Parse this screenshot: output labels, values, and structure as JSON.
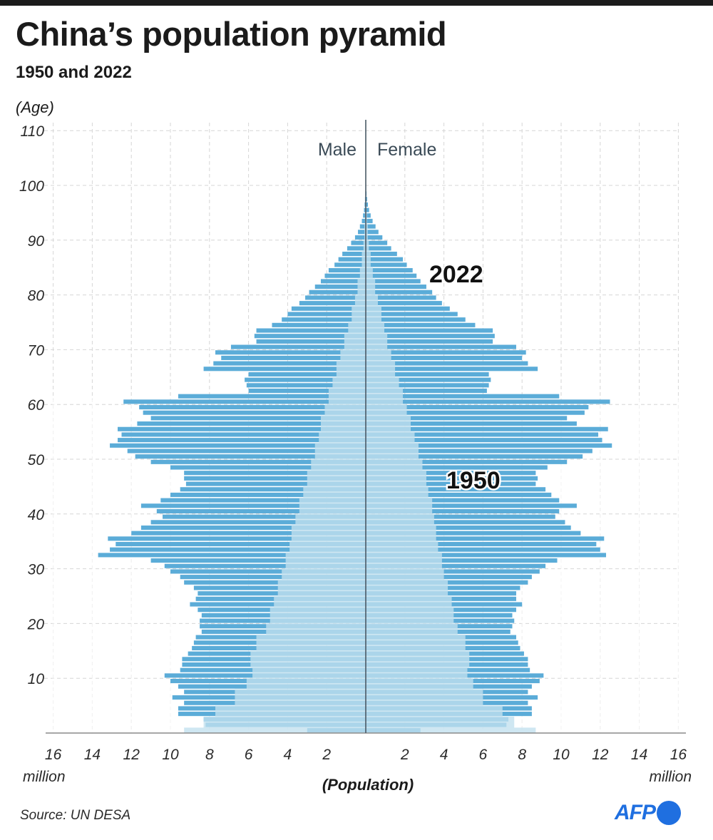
{
  "header": {
    "title": "China’s population pyramid",
    "subtitle": "1950 and 2022"
  },
  "footer": {
    "source": "Source: UN DESA",
    "logo_text": "AFP"
  },
  "colors": {
    "bar_2022": "#5bacd8",
    "area_1950": "#c2e0ee",
    "axis": "#4a5a66",
    "grid": "#d6d6d6",
    "logo": "#1f6fe0"
  },
  "chart_data": {
    "type": "bar",
    "title": "China’s population pyramid",
    "subtitle": "1950 and 2022",
    "orientation": "horizontal-mirrored",
    "ylabel": "(Age)",
    "xlabel": "(Population)",
    "x_unit_left": "million",
    "x_unit_right": "million",
    "xlim": [
      -16,
      16
    ],
    "ylim": [
      0,
      110
    ],
    "x_ticks": [
      -16,
      -14,
      -12,
      -10,
      -8,
      -6,
      -4,
      -2,
      2,
      4,
      6,
      8,
      10,
      12,
      14,
      16
    ],
    "x_tick_labels": [
      "16",
      "14",
      "12",
      "10",
      "8",
      "6",
      "4",
      "2",
      "2",
      "4",
      "6",
      "8",
      "10",
      "12",
      "14",
      "16"
    ],
    "y_ticks": [
      10,
      20,
      30,
      40,
      50,
      60,
      70,
      80,
      90,
      100,
      110
    ],
    "y_tick_labels": [
      "10",
      "20",
      "30",
      "40",
      "50",
      "60",
      "70",
      "80",
      "90",
      "100",
      "110"
    ],
    "side_labels": {
      "left": "Male",
      "right": "Female"
    },
    "series_labels": {
      "2022": "2022",
      "1950": "1950"
    },
    "series": [
      {
        "name": "2022",
        "ages": [
          0,
          1,
          2,
          3,
          4,
          5,
          6,
          7,
          8,
          9,
          10,
          11,
          12,
          13,
          14,
          15,
          16,
          17,
          18,
          19,
          20,
          21,
          22,
          23,
          24,
          25,
          26,
          27,
          28,
          29,
          30,
          31,
          32,
          33,
          34,
          35,
          36,
          37,
          38,
          39,
          40,
          41,
          42,
          43,
          44,
          45,
          46,
          47,
          48,
          49,
          50,
          51,
          52,
          53,
          54,
          55,
          56,
          57,
          58,
          59,
          60,
          61,
          62,
          63,
          64,
          65,
          66,
          67,
          68,
          69,
          70,
          71,
          72,
          73,
          74,
          75,
          76,
          77,
          78,
          79,
          80,
          81,
          82,
          83,
          84,
          85,
          86,
          87,
          88,
          89,
          90,
          91,
          92,
          93,
          94,
          95,
          96,
          97,
          98,
          99,
          100
        ],
        "male": [
          3.0,
          8.2,
          8.3,
          9.6,
          9.6,
          9.3,
          9.9,
          9.3,
          9.6,
          10.0,
          10.3,
          9.5,
          9.4,
          9.4,
          9.1,
          8.9,
          8.8,
          8.7,
          8.4,
          8.5,
          8.5,
          8.4,
          8.6,
          9.0,
          8.7,
          8.6,
          8.8,
          9.3,
          9.5,
          10.0,
          10.3,
          11.0,
          13.7,
          13.1,
          12.8,
          13.2,
          12.0,
          11.5,
          11.0,
          10.4,
          10.7,
          11.5,
          10.5,
          10.0,
          9.5,
          9.2,
          9.3,
          9.3,
          10.0,
          11.0,
          11.8,
          12.2,
          13.1,
          12.7,
          12.5,
          12.7,
          11.7,
          11.0,
          11.4,
          11.6,
          12.4,
          9.6,
          6.0,
          6.1,
          6.2,
          6.0,
          8.3,
          7.8,
          7.4,
          7.7,
          6.9,
          5.6,
          5.7,
          5.6,
          4.8,
          4.3,
          4.0,
          3.8,
          3.4,
          3.1,
          2.9,
          2.6,
          2.3,
          2.1,
          1.9,
          1.6,
          1.4,
          1.2,
          0.95,
          0.75,
          0.55,
          0.4,
          0.3,
          0.2,
          0.14,
          0.09,
          0.06,
          0.04,
          0.02,
          0.01,
          0.005
        ],
        "female": [
          2.8,
          7.2,
          7.3,
          8.5,
          8.5,
          8.3,
          8.8,
          8.3,
          8.5,
          8.9,
          9.1,
          8.4,
          8.3,
          8.3,
          8.1,
          7.9,
          7.8,
          7.7,
          7.4,
          7.5,
          7.6,
          7.5,
          7.7,
          8.0,
          7.7,
          7.7,
          7.9,
          8.3,
          8.5,
          8.9,
          9.2,
          9.8,
          12.3,
          12.0,
          11.8,
          12.2,
          11.0,
          10.5,
          10.2,
          9.7,
          9.9,
          10.8,
          9.9,
          9.5,
          9.2,
          8.7,
          8.8,
          8.7,
          9.3,
          10.3,
          11.1,
          11.6,
          12.6,
          12.1,
          11.9,
          12.4,
          10.8,
          10.3,
          11.2,
          11.4,
          12.5,
          9.9,
          6.2,
          6.3,
          6.4,
          6.3,
          8.8,
          8.3,
          8.0,
          8.2,
          7.7,
          6.5,
          6.6,
          6.5,
          5.6,
          5.1,
          4.7,
          4.3,
          3.9,
          3.6,
          3.4,
          3.1,
          2.8,
          2.6,
          2.4,
          2.1,
          1.9,
          1.6,
          1.3,
          1.1,
          0.85,
          0.65,
          0.5,
          0.35,
          0.25,
          0.17,
          0.11,
          0.07,
          0.04,
          0.02,
          0.01
        ]
      },
      {
        "name": "1950",
        "ages": [
          0,
          1,
          3,
          5,
          8,
          10,
          12,
          15,
          18,
          20,
          23,
          25,
          28,
          30,
          33,
          35,
          38,
          40,
          43,
          45,
          48,
          50,
          53,
          55,
          58,
          60,
          63,
          65,
          68,
          70,
          73,
          75,
          78,
          80,
          83,
          85,
          88,
          90,
          93,
          95,
          98,
          100
        ],
        "male": [
          9.3,
          8.3,
          7.7,
          6.7,
          6.1,
          5.8,
          5.9,
          5.6,
          5.1,
          4.9,
          4.7,
          4.5,
          4.3,
          4.1,
          3.9,
          3.8,
          3.6,
          3.4,
          3.2,
          3.0,
          2.8,
          2.6,
          2.4,
          2.3,
          2.1,
          1.9,
          1.7,
          1.5,
          1.3,
          1.1,
          0.9,
          0.72,
          0.55,
          0.42,
          0.3,
          0.2,
          0.12,
          0.07,
          0.04,
          0.02,
          0.01,
          0.005
        ],
        "female": [
          8.7,
          7.6,
          7.0,
          6.0,
          5.5,
          5.2,
          5.3,
          5.1,
          4.7,
          4.5,
          4.4,
          4.2,
          4.0,
          3.9,
          3.7,
          3.6,
          3.5,
          3.4,
          3.2,
          3.1,
          2.9,
          2.7,
          2.5,
          2.3,
          2.1,
          1.9,
          1.7,
          1.5,
          1.3,
          1.1,
          0.95,
          0.8,
          0.62,
          0.48,
          0.36,
          0.25,
          0.16,
          0.1,
          0.06,
          0.03,
          0.015,
          0.005
        ]
      }
    ]
  }
}
